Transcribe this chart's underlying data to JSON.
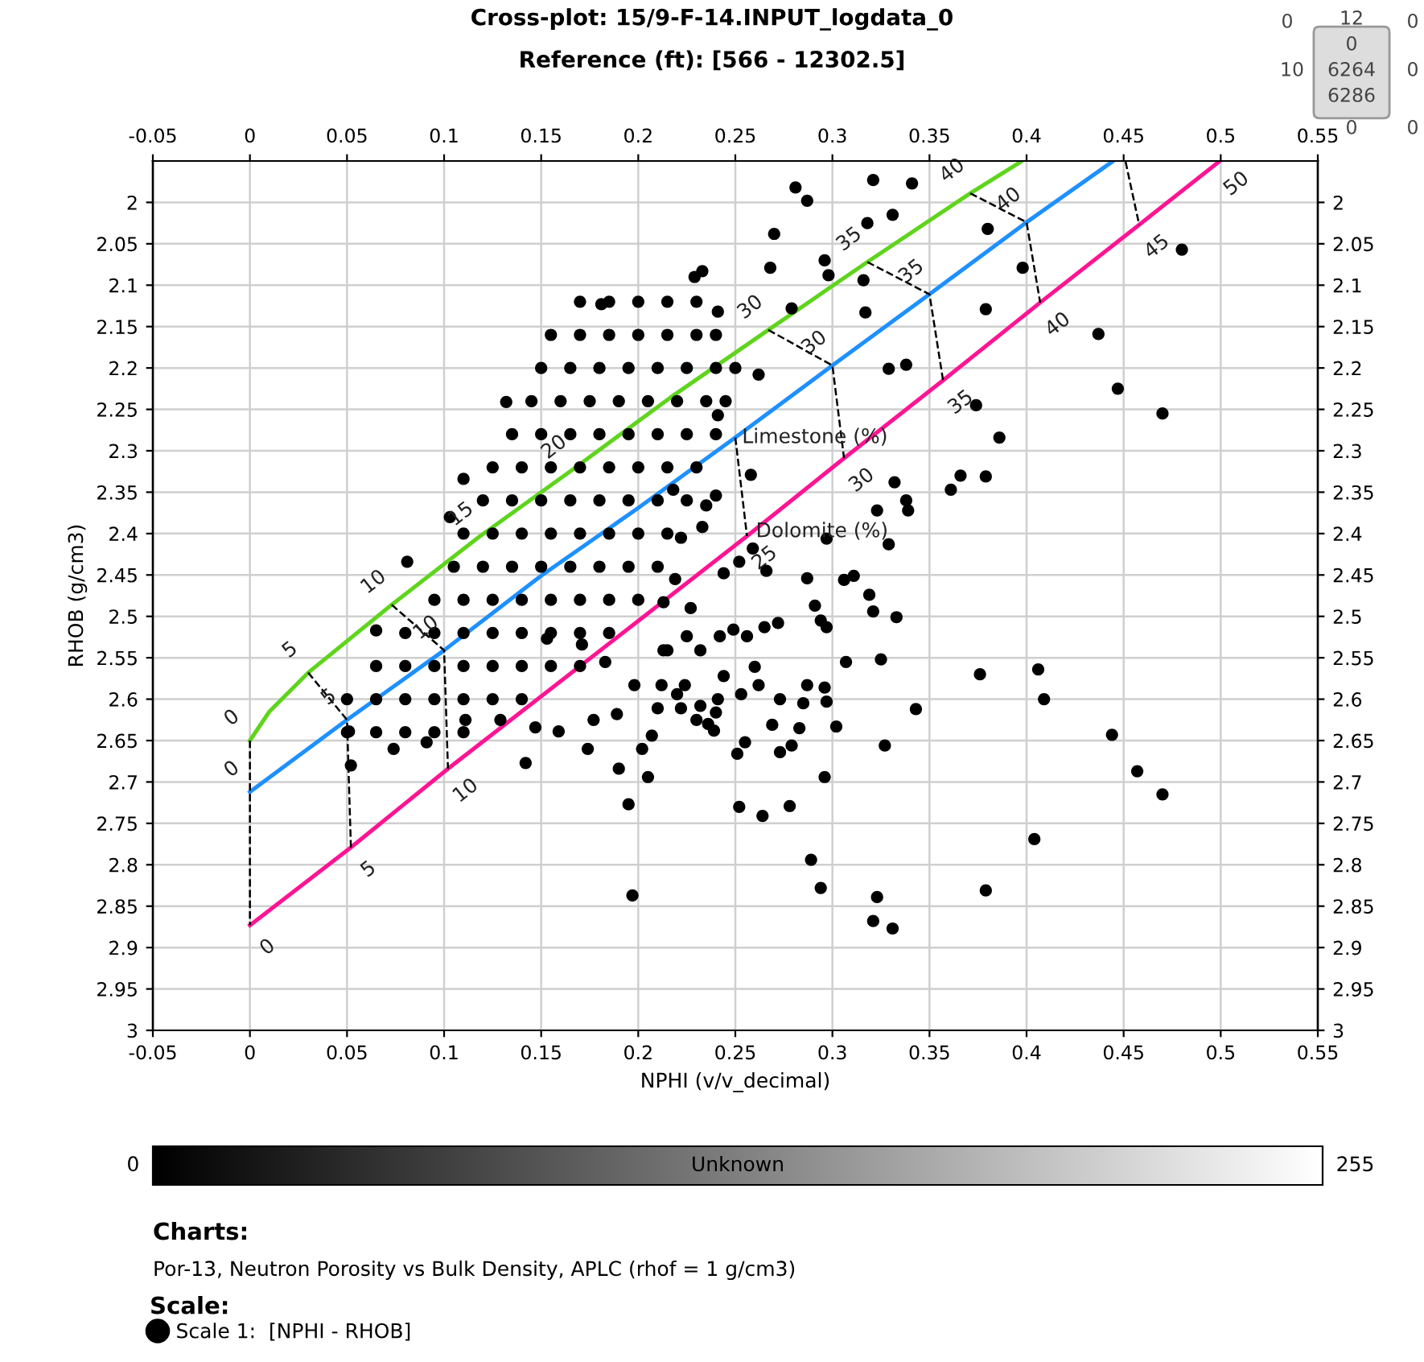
{
  "chart_data": {
    "type": "scatter",
    "title": "Cross-plot: 15/9-F-14.INPUT_logdata_0",
    "subtitle": "Reference (ft): [566 - 12302.5]",
    "xlabel": "NPHI (v/v_decimal)",
    "ylabel": "RHOB (g/cm3)",
    "clabel": "Unknown",
    "clim": [
      0,
      255
    ],
    "cticks": [
      0,
      255
    ],
    "legend_title": "Scale:",
    "legend": "bottom",
    "grid": true,
    "marker": "circle",
    "xlim": [
      -0.05,
      0.55
    ],
    "xticks": [
      -0.05,
      0,
      0.05,
      0.1,
      0.15,
      0.2,
      0.25,
      0.3,
      0.35,
      0.4,
      0.45,
      0.5,
      0.55
    ],
    "x2lim": [
      -0.05,
      0.55
    ],
    "x2ticks": [
      -0.05,
      0,
      0.05,
      0.1,
      0.15,
      0.2,
      0.25,
      0.3,
      0.35,
      0.4,
      0.45,
      0.5,
      0.55
    ],
    "ylim": [
      3,
      1.95
    ],
    "yticks": [
      2,
      2.05,
      2.1,
      2.15,
      2.2,
      2.25,
      2.3,
      2.35,
      2.4,
      2.45,
      2.5,
      2.55,
      2.6,
      2.65,
      2.7,
      2.75,
      2.8,
      2.85,
      2.9,
      2.95,
      3
    ],
    "y2lim": [
      3,
      1.95
    ],
    "y2ticks": [
      2,
      2.05,
      2.1,
      2.15,
      2.2,
      2.25,
      2.3,
      2.35,
      2.4,
      2.45,
      2.5,
      2.55,
      2.6,
      2.65,
      2.7,
      2.75,
      2.8,
      2.85,
      2.9,
      2.95,
      3
    ],
    "series": [
      {
        "type": "line",
        "color": "#5fd41c",
        "line_style": "solid",
        "marker": "none",
        "x": [
          0,
          0.01,
          0.03,
          0.073,
          0.118,
          0.166,
          0.217,
          0.267,
          0.318,
          0.371,
          0.397
        ],
        "values": [
          2.65,
          2.615,
          2.568,
          2.486,
          2.404,
          2.323,
          2.235,
          2.154,
          2.072,
          1.989,
          1.951
        ]
      },
      {
        "type": "line",
        "color": "#1e90ff",
        "line_style": "solid",
        "marker": "none",
        "x": [
          0,
          0.05,
          0.1,
          0.15,
          0.2,
          0.25,
          0.3,
          0.35,
          0.4,
          0.444
        ],
        "values": [
          2.712,
          2.625,
          2.541,
          2.451,
          2.369,
          2.284,
          2.197,
          2.111,
          2.024,
          1.951
        ]
      },
      {
        "type": "line",
        "color": "#ff1493",
        "line_style": "solid",
        "marker": "none",
        "x": [
          0,
          0.052,
          0.102,
          0.203,
          0.256,
          0.306,
          0.357,
          0.407,
          0.458,
          0.499
        ],
        "values": [
          2.873,
          2.779,
          2.684,
          2.5,
          2.403,
          2.309,
          2.215,
          2.121,
          2.027,
          1.951
        ]
      },
      {
        "type": "line",
        "color": "#000000",
        "line_style": "dashed",
        "marker": "none",
        "x": [
          0,
          0,
          0
        ],
        "values": [
          2.65,
          2.712,
          2.873
        ]
      },
      {
        "type": "line",
        "color": "#000000",
        "line_style": "dashed",
        "marker": "none",
        "x": [
          0.03,
          0.05,
          0.052
        ],
        "values": [
          2.568,
          2.625,
          2.779
        ]
      },
      {
        "type": "line",
        "color": "#000000",
        "line_style": "dashed",
        "marker": "none",
        "x": [
          0.073,
          0.1,
          0.102
        ],
        "values": [
          2.486,
          2.541,
          2.684
        ]
      },
      {
        "type": "line",
        "color": "#000000",
        "line_style": "dashed",
        "marker": "none",
        "x": [
          0.25,
          0.256
        ],
        "values": [
          2.284,
          2.403
        ]
      },
      {
        "type": "line",
        "color": "#000000",
        "line_style": "dashed",
        "marker": "none",
        "x": [
          0.267,
          0.3,
          0.306
        ],
        "values": [
          2.154,
          2.197,
          2.309
        ]
      },
      {
        "type": "line",
        "color": "#000000",
        "line_style": "dashed",
        "marker": "none",
        "x": [
          0.318,
          0.35,
          0.357
        ],
        "values": [
          2.072,
          2.111,
          2.215
        ]
      },
      {
        "type": "line",
        "color": "#000000",
        "line_style": "dashed",
        "marker": "none",
        "x": [
          0.371,
          0.4,
          0.407
        ],
        "values": [
          1.989,
          2.024,
          2.121
        ]
      },
      {
        "type": "line",
        "color": "#000000",
        "line_style": "dashed",
        "marker": "none",
        "x": [
          0.451,
          0.458
        ],
        "values": [
          1.951,
          2.027
        ]
      },
      {
        "name": "Scale 1:  [NPHI - RHOB]",
        "color": "#000000",
        "x": [
          0.17,
          0.185,
          0.2,
          0.215,
          0.23,
          0.155,
          0.17,
          0.185,
          0.2,
          0.215,
          0.23,
          0.24,
          0.15,
          0.165,
          0.18,
          0.195,
          0.21,
          0.225,
          0.24,
          0.25,
          0.145,
          0.16,
          0.175,
          0.19,
          0.205,
          0.22,
          0.235,
          0.245,
          0.135,
          0.15,
          0.165,
          0.18,
          0.195,
          0.21,
          0.225,
          0.24,
          0.125,
          0.14,
          0.155,
          0.17,
          0.185,
          0.2,
          0.215,
          0.23,
          0.12,
          0.135,
          0.15,
          0.165,
          0.18,
          0.195,
          0.21,
          0.225,
          0.11,
          0.125,
          0.14,
          0.155,
          0.17,
          0.185,
          0.2,
          0.215,
          0.105,
          0.12,
          0.135,
          0.15,
          0.165,
          0.18,
          0.195,
          0.21,
          0.095,
          0.11,
          0.125,
          0.14,
          0.155,
          0.17,
          0.185,
          0.2,
          0.08,
          0.095,
          0.11,
          0.125,
          0.14,
          0.155,
          0.17,
          0.185,
          0.065,
          0.08,
          0.095,
          0.11,
          0.125,
          0.14,
          0.155,
          0.17,
          0.05,
          0.065,
          0.08,
          0.095,
          0.11,
          0.125,
          0.14,
          0.05,
          0.065,
          0.08,
          0.095,
          0.11,
          0.281,
          0.287,
          0.321,
          0.341,
          0.331,
          0.318,
          0.38,
          0.48,
          0.398,
          0.379,
          0.437,
          0.447,
          0.47,
          0.374,
          0.386,
          0.366,
          0.379,
          0.361,
          0.332,
          0.338,
          0.339,
          0.323,
          0.329,
          0.297,
          0.329,
          0.338,
          0.317,
          0.298,
          0.296,
          0.316,
          0.279,
          0.268,
          0.27,
          0.406,
          0.409,
          0.376,
          0.444,
          0.457,
          0.47,
          0.404,
          0.379,
          0.343,
          0.327,
          0.296,
          0.289,
          0.294,
          0.323,
          0.321,
          0.331,
          0.252,
          0.264,
          0.278,
          0.197,
          0.195,
          0.19,
          0.205,
          0.202,
          0.142,
          0.174,
          0.081,
          0.065,
          0.103,
          0.11,
          0.132,
          0.181,
          0.229,
          0.287,
          0.306,
          0.311,
          0.319,
          0.333,
          0.321,
          0.291,
          0.294,
          0.297,
          0.272,
          0.265,
          0.256,
          0.249,
          0.242,
          0.232,
          0.225,
          0.215,
          0.212,
          0.22,
          0.232,
          0.241,
          0.253,
          0.262,
          0.273,
          0.287,
          0.285,
          0.296,
          0.307,
          0.325,
          0.297,
          0.302,
          0.283,
          0.279,
          0.273,
          0.269,
          0.255,
          0.251,
          0.24,
          0.236,
          0.222,
          0.21,
          0.207,
          0.244,
          0.26,
          0.258,
          0.24,
          0.233,
          0.235,
          0.222,
          0.244,
          0.252,
          0.259,
          0.266,
          0.219,
          0.213,
          0.227,
          0.153,
          0.171,
          0.183,
          0.198,
          0.213,
          0.224,
          0.23,
          0.239,
          0.189,
          0.177,
          0.159,
          0.147,
          0.129,
          0.111,
          0.091,
          0.074,
          0.052,
          0.051,
          0.233,
          0.241,
          0.262,
          0.241,
          0.218
        ],
        "values": [
          2.12,
          2.12,
          2.12,
          2.12,
          2.12,
          2.16,
          2.16,
          2.16,
          2.16,
          2.16,
          2.16,
          2.16,
          2.2,
          2.2,
          2.2,
          2.2,
          2.2,
          2.2,
          2.2,
          2.2,
          2.24,
          2.24,
          2.24,
          2.24,
          2.24,
          2.24,
          2.24,
          2.24,
          2.28,
          2.28,
          2.28,
          2.28,
          2.28,
          2.28,
          2.28,
          2.28,
          2.32,
          2.32,
          2.32,
          2.32,
          2.32,
          2.32,
          2.32,
          2.32,
          2.36,
          2.36,
          2.36,
          2.36,
          2.36,
          2.36,
          2.36,
          2.36,
          2.4,
          2.4,
          2.4,
          2.4,
          2.4,
          2.4,
          2.4,
          2.4,
          2.44,
          2.44,
          2.44,
          2.44,
          2.44,
          2.44,
          2.44,
          2.44,
          2.48,
          2.48,
          2.48,
          2.48,
          2.48,
          2.48,
          2.48,
          2.48,
          2.52,
          2.52,
          2.52,
          2.52,
          2.52,
          2.52,
          2.52,
          2.52,
          2.56,
          2.56,
          2.56,
          2.56,
          2.56,
          2.56,
          2.56,
          2.56,
          2.6,
          2.6,
          2.6,
          2.6,
          2.6,
          2.6,
          2.6,
          2.64,
          2.64,
          2.64,
          2.64,
          2.64,
          1.982,
          1.998,
          1.973,
          1.977,
          2.015,
          2.025,
          2.032,
          2.057,
          2.079,
          2.129,
          2.159,
          2.225,
          2.255,
          2.245,
          2.284,
          2.33,
          2.331,
          2.347,
          2.338,
          2.36,
          2.372,
          2.372,
          2.413,
          2.406,
          2.201,
          2.196,
          2.133,
          2.088,
          2.07,
          2.094,
          2.128,
          2.079,
          2.038,
          2.564,
          2.6,
          2.57,
          2.643,
          2.687,
          2.715,
          2.769,
          2.831,
          2.612,
          2.656,
          2.694,
          2.794,
          2.828,
          2.839,
          2.868,
          2.877,
          2.73,
          2.741,
          2.729,
          2.837,
          2.727,
          2.684,
          2.694,
          2.66,
          2.677,
          2.66,
          2.434,
          2.517,
          2.38,
          2.334,
          2.241,
          2.123,
          2.09,
          2.454,
          2.456,
          2.451,
          2.474,
          2.501,
          2.494,
          2.487,
          2.505,
          2.513,
          2.508,
          2.513,
          2.524,
          2.516,
          2.524,
          2.541,
          2.524,
          2.541,
          2.583,
          2.594,
          2.608,
          2.6,
          2.594,
          2.583,
          2.6,
          2.583,
          2.605,
          2.586,
          2.555,
          2.552,
          2.603,
          2.633,
          2.635,
          2.656,
          2.664,
          2.631,
          2.652,
          2.666,
          2.616,
          2.63,
          2.611,
          2.611,
          2.644,
          2.572,
          2.561,
          2.329,
          2.354,
          2.392,
          2.366,
          2.405,
          2.448,
          2.434,
          2.418,
          2.445,
          2.455,
          2.483,
          2.49,
          2.527,
          2.534,
          2.555,
          2.583,
          2.541,
          2.583,
          2.625,
          2.638,
          2.618,
          2.625,
          2.639,
          2.634,
          2.625,
          2.625,
          2.652,
          2.66,
          2.68,
          2.639,
          2.083,
          2.132,
          2.208,
          2.257,
          2.347
        ]
      }
    ],
    "annotations": [
      {
        "text": "0",
        "x": 0,
        "y": 2.65
      },
      {
        "text": "5",
        "x": 0.03,
        "y": 2.568
      },
      {
        "text": "10",
        "x": 0.073,
        "y": 2.486
      },
      {
        "text": "15",
        "x": 0.118,
        "y": 2.404
      },
      {
        "text": "20",
        "x": 0.166,
        "y": 2.323
      },
      {
        "text": "30",
        "x": 0.267,
        "y": 2.154
      },
      {
        "text": "35",
        "x": 0.318,
        "y": 2.072
      },
      {
        "text": "40",
        "x": 0.371,
        "y": 1.989
      },
      {
        "text": "0",
        "x": 0,
        "y": 2.712
      },
      {
        "text": "5",
        "x": 0.05,
        "y": 2.625
      },
      {
        "text": "10",
        "x": 0.1,
        "y": 2.541
      },
      {
        "text": "30",
        "x": 0.3,
        "y": 2.197
      },
      {
        "text": "35",
        "x": 0.35,
        "y": 2.111
      },
      {
        "text": "40",
        "x": 0.4,
        "y": 2.024
      },
      {
        "text": "0",
        "x": 0,
        "y": 2.873
      },
      {
        "text": "5",
        "x": 0.052,
        "y": 2.779
      },
      {
        "text": "10",
        "x": 0.102,
        "y": 2.684
      },
      {
        "text": "25",
        "x": 0.256,
        "y": 2.403
      },
      {
        "text": "30",
        "x": 0.306,
        "y": 2.309
      },
      {
        "text": "35",
        "x": 0.357,
        "y": 2.215
      },
      {
        "text": "40",
        "x": 0.407,
        "y": 2.121
      },
      {
        "text": "45",
        "x": 0.458,
        "y": 2.027
      },
      {
        "text": "50",
        "x": 0.499,
        "y": 1.951
      },
      {
        "text": "Limestone (%)",
        "x": 0.25,
        "y": 2.284
      },
      {
        "text": "Dolomite (%)",
        "x": 0.256,
        "y": 2.403
      },
      "Charts:",
      "Por-13, Neutron Porosity vs Bulk Density, APLC (rhof = 1 g/cm3)",
      "0",
      "12",
      "0",
      "0",
      "10",
      "6264",
      "0",
      "6286",
      "0",
      "0"
    ]
  }
}
